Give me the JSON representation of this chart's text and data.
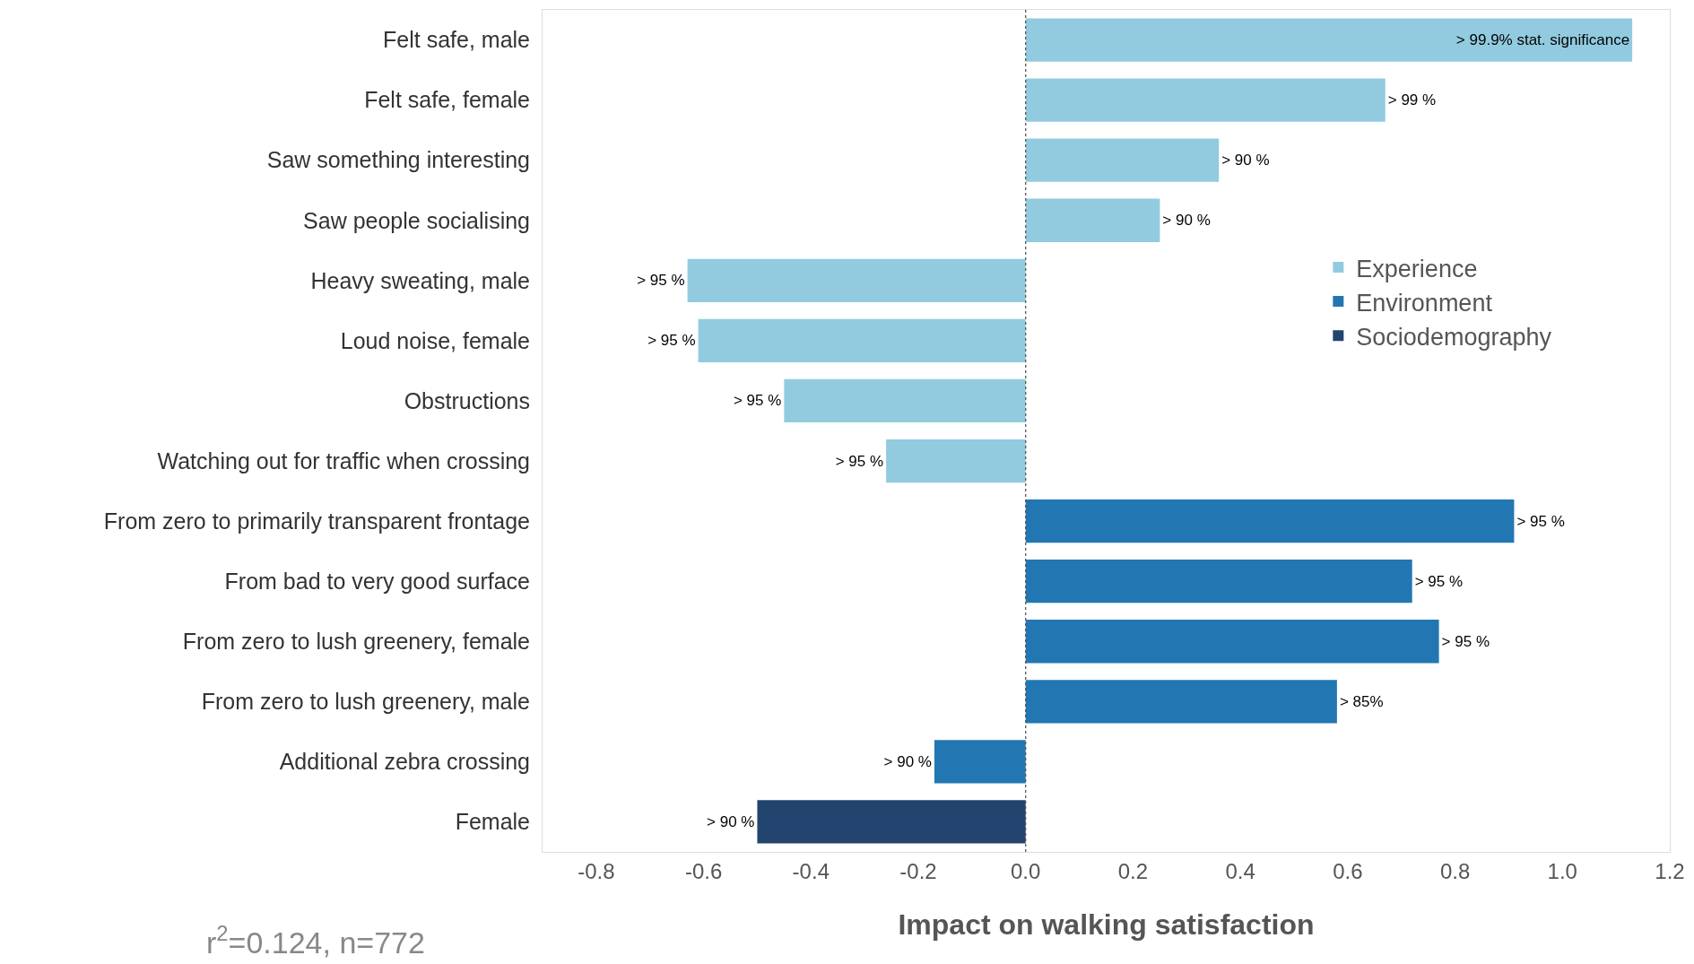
{
  "chart_data": {
    "type": "bar",
    "orientation": "horizontal",
    "xlabel": "Impact on walking satisfaction",
    "categories": [
      "Felt safe, male",
      "Felt safe, female",
      "Saw something interesting",
      "Saw people socialising",
      "Heavy sweating, male",
      "Loud noise, female",
      "Obstructions",
      "Watching out for traffic when crossing",
      "From zero to primarily transparent frontage",
      "From bad to very good surface",
      "From zero to lush greenery, female",
      "From zero to lush greenery, male",
      "Additional zebra crossing",
      "Female"
    ],
    "series": [
      {
        "name": "Experience",
        "color": "#92cbdf",
        "values": [
          1.13,
          0.67,
          0.36,
          0.25,
          -0.63,
          -0.61,
          -0.45,
          -0.26,
          null,
          null,
          null,
          null,
          null,
          null
        ],
        "value_labels": [
          "> 99.9% stat. significance",
          "> 99 %",
          "> 90 %",
          "> 90 %",
          "> 95 %",
          "> 95 %",
          "> 95 %",
          "> 95 %",
          null,
          null,
          null,
          null,
          null,
          null
        ]
      },
      {
        "name": "Environment",
        "color": "#2277b3",
        "values": [
          null,
          null,
          null,
          null,
          null,
          null,
          null,
          null,
          0.91,
          0.72,
          0.77,
          0.58,
          -0.17,
          null
        ],
        "value_labels": [
          null,
          null,
          null,
          null,
          null,
          null,
          null,
          null,
          "> 95 %",
          "> 95 %",
          "> 95 %",
          "> 85%",
          "> 90 %",
          null
        ]
      },
      {
        "name": "Sociodemography",
        "color": "#23446e",
        "values": [
          null,
          null,
          null,
          null,
          null,
          null,
          null,
          null,
          null,
          null,
          null,
          null,
          null,
          -0.5
        ],
        "value_labels": [
          null,
          null,
          null,
          null,
          null,
          null,
          null,
          null,
          null,
          null,
          null,
          null,
          null,
          "> 90 %"
        ]
      }
    ],
    "xlim": [
      -0.9,
      1.2
    ],
    "xticks": [
      -0.8,
      -0.6,
      -0.4,
      -0.2,
      {
        "value": 0,
        "label": "0.0"
      },
      0.2,
      0.4,
      0.6,
      0.8,
      {
        "value": 1,
        "label": "1.0"
      },
      1.2
    ],
    "ref_lines": [
      {
        "axis": "x",
        "value": 0,
        "color": "#555555",
        "line_style": "dotted"
      }
    ],
    "legend": "right",
    "annotations": [
      "r$^{2}$=0.124, n=772"
    ]
  }
}
